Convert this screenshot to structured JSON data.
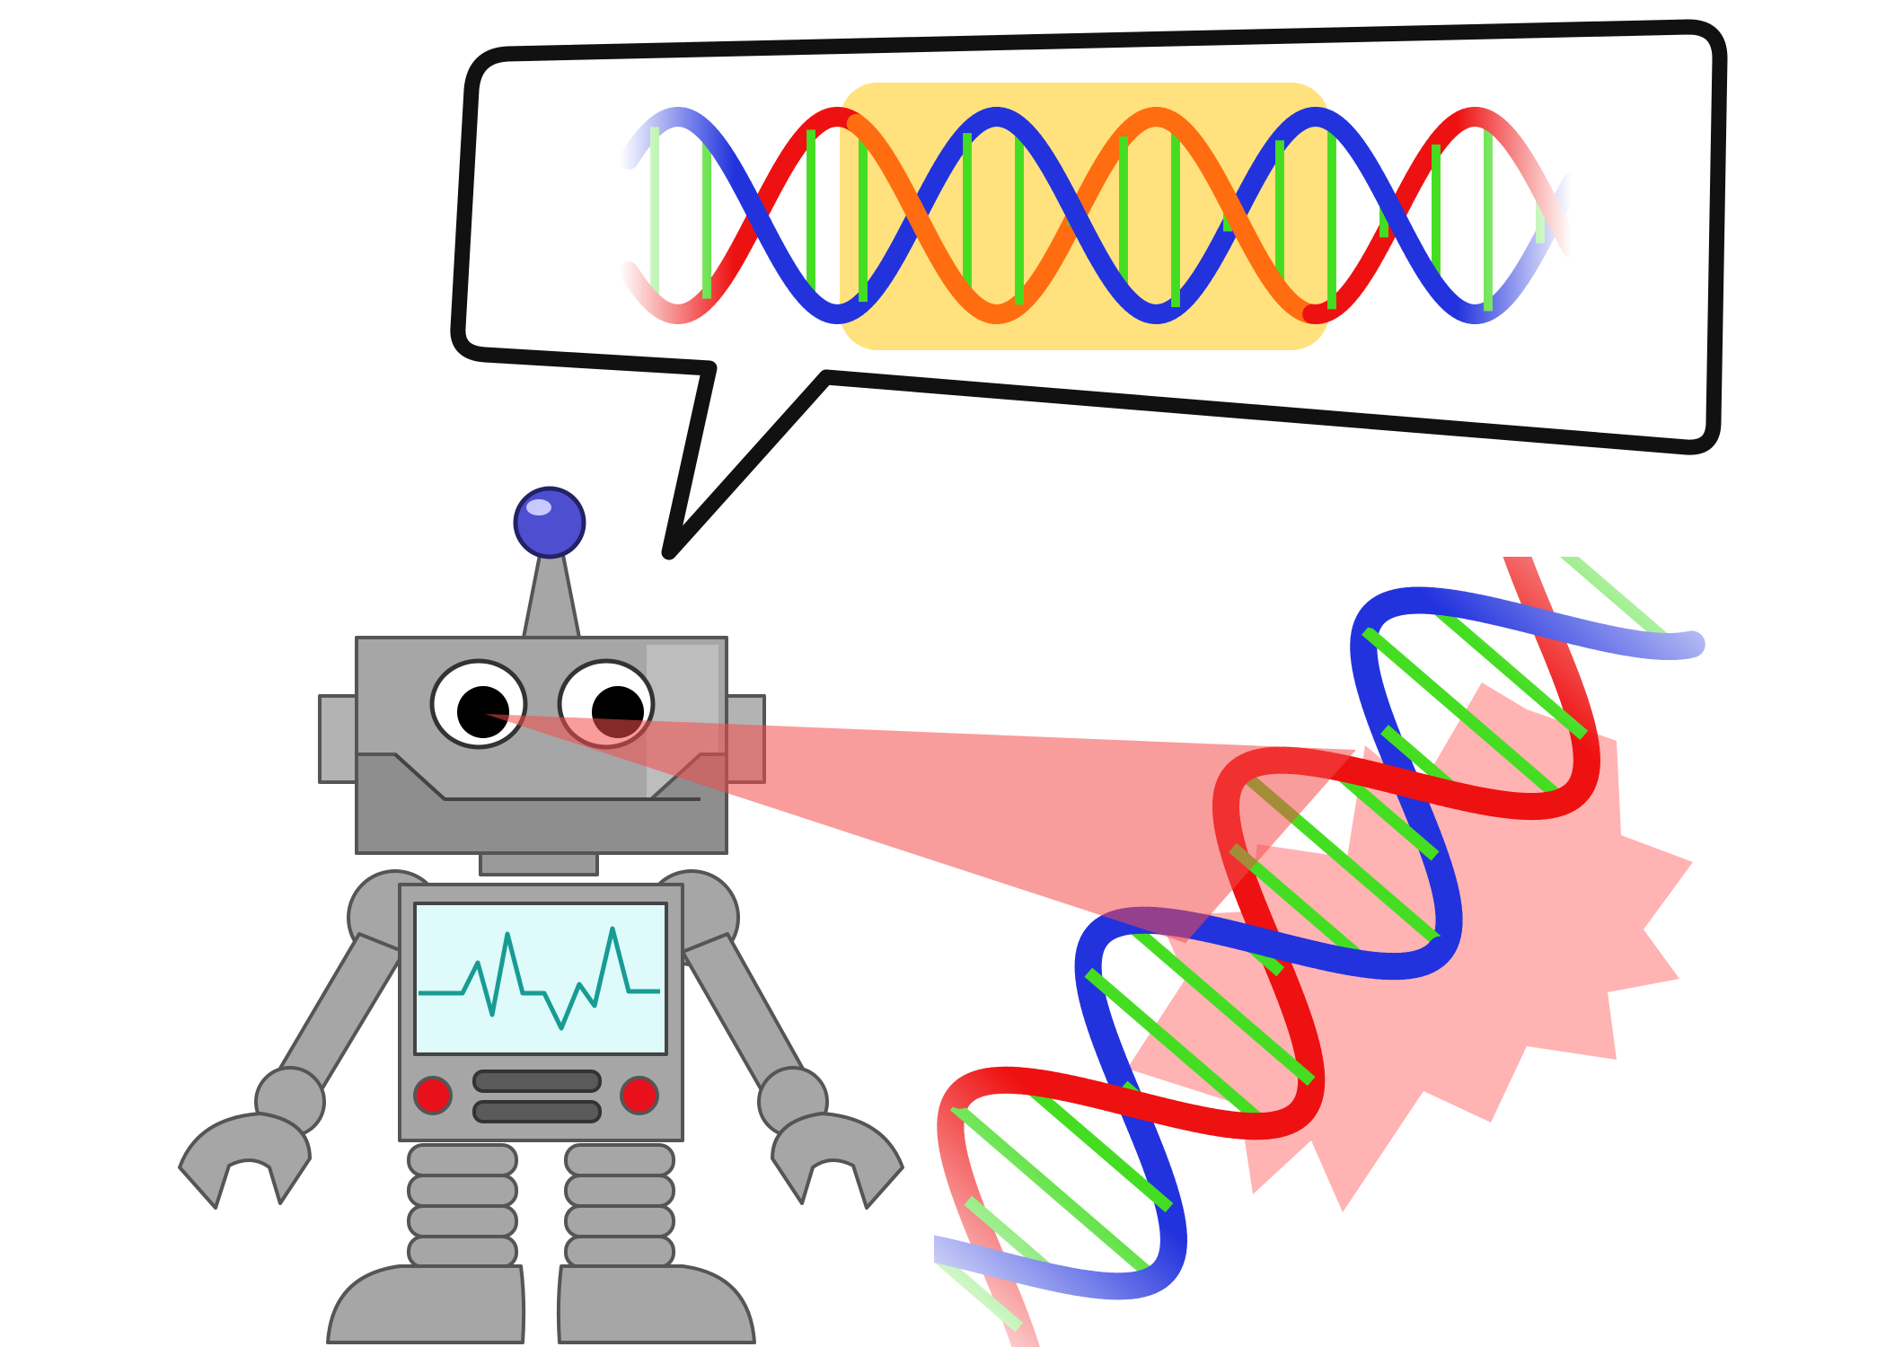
{
  "scene": {
    "background": "#ffffff",
    "robot": {
      "body_color": "#a6a6a6",
      "outline_color": "#555555",
      "antenna_ball_color": "#4e4ed0",
      "screen_color": "#dffafb",
      "waveform_color": "#179c94",
      "button_color": "#e8101a",
      "pupil_color": "#000000"
    },
    "laser_beam": {
      "color": "#f44a4a",
      "opacity": 0.55
    },
    "dna": {
      "strand_a_color": "#ee1111",
      "strand_b_color": "#2233dd",
      "rung_color": "#44dd22",
      "highlight_strand_color": "#ff6d10",
      "highlight_box_color": "#ffdd66",
      "starburst_color": "#ff9a9a"
    },
    "speech_bubble": {
      "fill": "#ffffff",
      "stroke": "#111111"
    },
    "icons": [
      "robot-icon",
      "dna-helix-icon",
      "speech-bubble-icon",
      "laser-beam-icon",
      "heartbeat-icon"
    ]
  }
}
